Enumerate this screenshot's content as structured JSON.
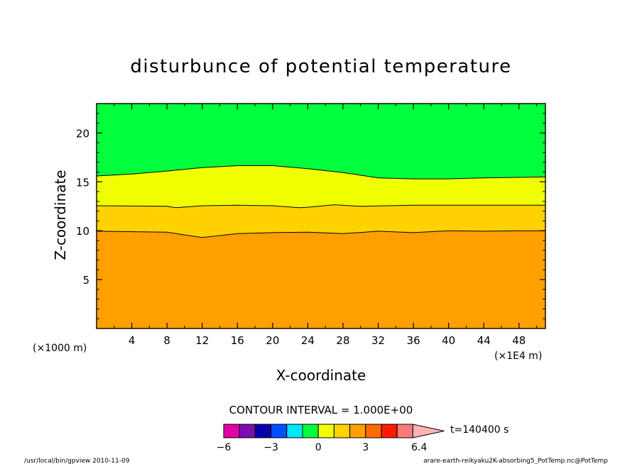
{
  "chart_data": {
    "type": "heatmap",
    "title": "disturbunce of potential temperature",
    "xlabel": "X-coordinate",
    "ylabel": "Z-coordinate",
    "x_unit_left": "(×1000 m)",
    "x_unit_right": "(×1E4 m)",
    "xlim": [
      0,
      51
    ],
    "ylim": [
      0,
      23
    ],
    "xticks": [
      4,
      8,
      12,
      16,
      20,
      24,
      28,
      32,
      36,
      40,
      44,
      48
    ],
    "yticks": [
      5,
      10,
      15,
      20
    ],
    "contour_interval_label": "CONTOUR INTERVAL = 1.000E+00",
    "time_label": "t=140400 s",
    "colorbar": {
      "colors": [
        "#e000a8",
        "#7a0fb0",
        "#0a00a8",
        "#0050ff",
        "#00e6ff",
        "#00ff3c",
        "#f0ff00",
        "#ffd200",
        "#ffa000",
        "#ff6a00",
        "#ff1a00",
        "#ff7a7a",
        "#ffb4b4"
      ],
      "tick_labels": [
        {
          "value": -6,
          "text": "−6"
        },
        {
          "value": -3,
          "text": "−3"
        },
        {
          "value": 0,
          "text": "0"
        },
        {
          "value": 3,
          "text": "3"
        },
        {
          "value": 6.4,
          "text": "6.4"
        }
      ]
    },
    "regions": [
      {
        "level": "0",
        "color": "#00ff3c"
      },
      {
        "level": "1",
        "color": "#f0ff00"
      },
      {
        "level": "2",
        "color": "#ffd200"
      },
      {
        "level": "3",
        "color": "#ffa000"
      }
    ],
    "contours": [
      {
        "level": 2.5,
        "z_at_x": [
          [
            0,
            9.95
          ],
          [
            8,
            9.85
          ],
          [
            12,
            9.3
          ],
          [
            16,
            9.7
          ],
          [
            20,
            9.8
          ],
          [
            24,
            9.85
          ],
          [
            28,
            9.7
          ],
          [
            32,
            9.95
          ],
          [
            36,
            9.8
          ],
          [
            40,
            10.0
          ],
          [
            44,
            9.95
          ],
          [
            48,
            10.0
          ],
          [
            51,
            10.0
          ]
        ]
      },
      {
        "level": 1.5,
        "z_at_x": [
          [
            0,
            12.55
          ],
          [
            8,
            12.5
          ],
          [
            9,
            12.35
          ],
          [
            12,
            12.55
          ],
          [
            16,
            12.6
          ],
          [
            20,
            12.55
          ],
          [
            23,
            12.35
          ],
          [
            24,
            12.4
          ],
          [
            27,
            12.65
          ],
          [
            30,
            12.5
          ],
          [
            36,
            12.6
          ],
          [
            44,
            12.6
          ],
          [
            51,
            12.6
          ]
        ]
      },
      {
        "level": 0.5,
        "z_at_x": [
          [
            0,
            15.6
          ],
          [
            4,
            15.8
          ],
          [
            8,
            16.1
          ],
          [
            12,
            16.45
          ],
          [
            16,
            16.65
          ],
          [
            20,
            16.65
          ],
          [
            24,
            16.35
          ],
          [
            28,
            15.95
          ],
          [
            32,
            15.4
          ],
          [
            36,
            15.3
          ],
          [
            40,
            15.3
          ],
          [
            44,
            15.4
          ],
          [
            51,
            15.5
          ]
        ]
      }
    ]
  },
  "footer": {
    "left": "/usr/local/bin/gpview  2010-11-09",
    "right": "arare-earth-reikyaku2K-absorbing5_PotTemp.nc@PotTemp"
  }
}
